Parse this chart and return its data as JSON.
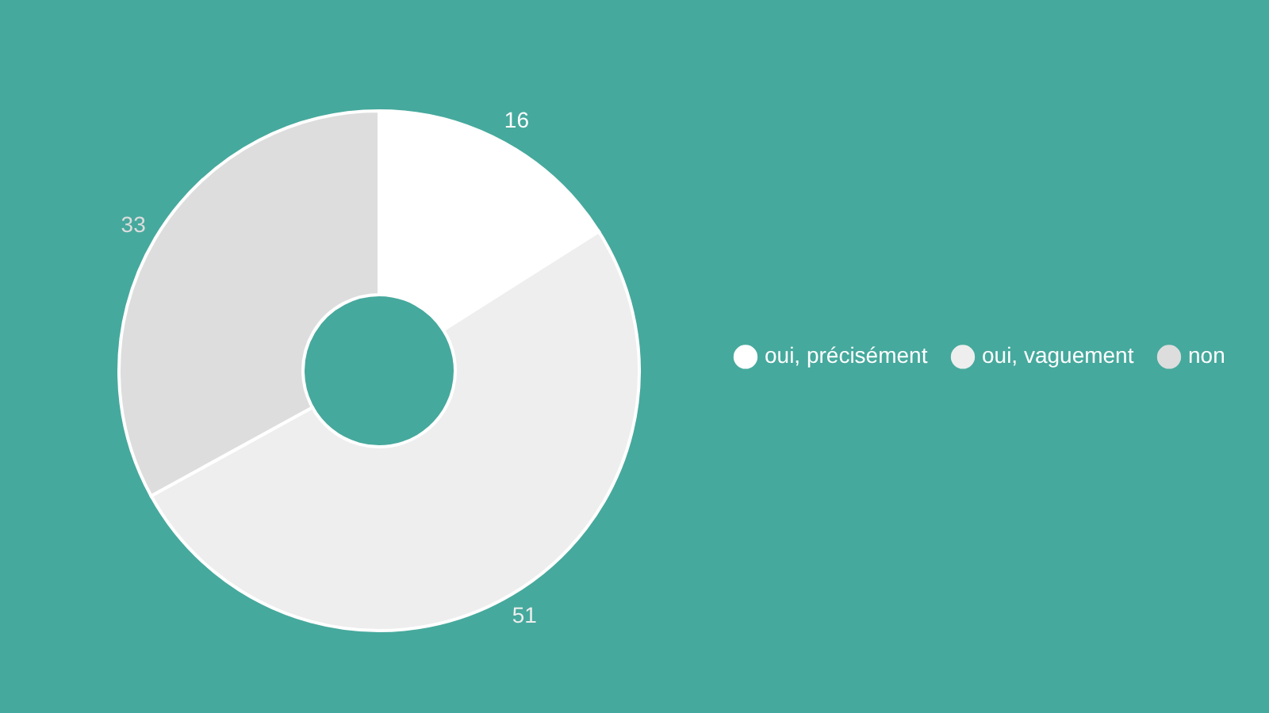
{
  "chart_data": {
    "type": "donut",
    "categories": [
      "oui, précisément",
      "oui, vaguement",
      "non"
    ],
    "values": [
      16,
      51,
      33
    ],
    "colors": [
      "#ffffff",
      "#eeeeee",
      "#dddddd"
    ],
    "data_labels": true,
    "legend": "right"
  }
}
